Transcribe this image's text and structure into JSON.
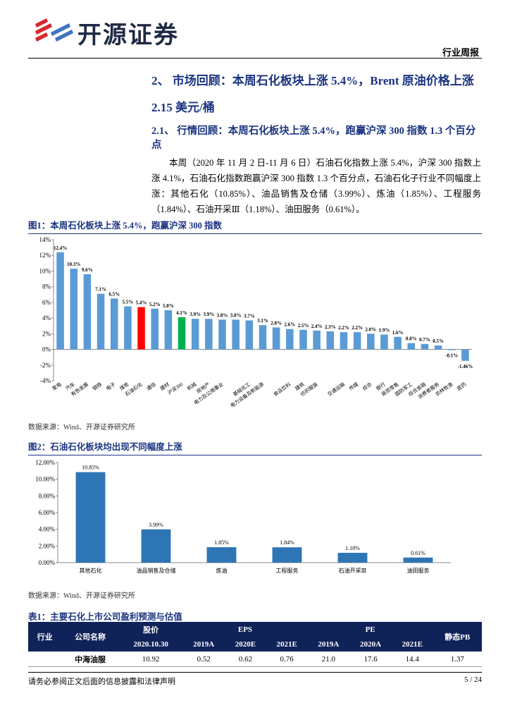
{
  "header": {
    "brand": "开源证券",
    "report_type": "行业周报"
  },
  "heading": "2、 市场回顾：本周石化板块上涨 5.4%，Brent 原油价格上涨 2.15 美元/桶",
  "subheading": "2.1、 行情回顾：本周石化板块上涨 5.4%，跑赢沪深 300 指数 1.3 个百分点",
  "paragraph": "本周（2020 年 11 月 2 日-11 月 6 日）石油石化指数上涨 5.4%，沪深 300 指数上涨 4.1%，石油石化指数跑赢沪深 300 指数 1.3 个百分点，石油石化子行业不同幅度上涨：其他石化（10.85%）、油品销售及仓储（3.99%）、炼油（1.85%）、工程服务（1.84%）、石油开采Ⅲ（1.18%）、油田服务（0.61%）。",
  "chart_data": [
    {
      "type": "bar",
      "title": "图1：本周石化板块上涨 5.4%，跑赢沪深 300 指数",
      "source": "数据来源：Wind、开源证券研究所",
      "categories": [
        "家电",
        "汽车",
        "有色金属",
        "钢铁",
        "电子",
        "煤炭",
        "石油石化",
        "通信",
        "建材",
        "沪深300",
        "机械",
        "房地产",
        "电力及公用事业",
        null,
        "基础化工",
        "电力设备及新能源",
        null,
        "食品饮料",
        "建筑",
        "纺织服装",
        null,
        "交通运输",
        "传媒",
        "综合",
        "银行",
        "商贸零售",
        "国防军工",
        "综合金融",
        "消费者服务",
        "农林牧渔",
        "医药"
      ],
      "values": [
        12.4,
        10.3,
        9.6,
        7.1,
        6.5,
        5.5,
        5.4,
        5.2,
        5.0,
        4.1,
        3.9,
        3.9,
        3.8,
        3.8,
        3.7,
        3.1,
        2.8,
        2.6,
        2.5,
        2.4,
        2.3,
        2.2,
        2.2,
        2.0,
        1.9,
        1.6,
        0.8,
        0.7,
        0.5,
        -0.1,
        -1.46
      ],
      "value_labels": [
        "12.4%",
        "10.3%",
        "9.6%",
        "7.1%",
        "6.5%",
        "5.5%",
        "5.4%",
        "5.2%",
        "5.0%",
        "4.1%",
        "3.9%",
        "3.9%",
        "3.8%",
        "3.8%",
        "3.7%",
        "3.1%",
        "2.8%",
        "2.6%",
        "2.5%",
        "2.4%",
        "2.3%",
        "2.2%",
        "2.2%",
        "2.0%",
        "1.9%",
        "1.6%",
        "0.8%",
        "0.7%",
        "0.5%",
        "-0.1%",
        "-1.46%"
      ],
      "colors": [
        "#5b9bd5",
        "#5b9bd5",
        "#5b9bd5",
        "#5b9bd5",
        "#5b9bd5",
        "#5b9bd5",
        "#ff0000",
        "#5b9bd5",
        "#5b9bd5",
        "#00b050",
        "#5b9bd5",
        "#5b9bd5",
        "#5b9bd5",
        "#5b9bd5",
        "#5b9bd5",
        "#5b9bd5",
        "#5b9bd5",
        "#5b9bd5",
        "#5b9bd5",
        "#5b9bd5",
        "#5b9bd5",
        "#5b9bd5",
        "#5b9bd5",
        "#5b9bd5",
        "#5b9bd5",
        "#5b9bd5",
        "#5b9bd5",
        "#5b9bd5",
        "#5b9bd5",
        "#5b9bd5",
        "#5b9bd5"
      ],
      "ylim": [
        -4,
        14
      ],
      "yticks": [
        {
          "value": -4,
          "label": "-4%"
        },
        {
          "value": -2,
          "label": "-2%"
        },
        {
          "value": 0,
          "label": "0%"
        },
        {
          "value": 2,
          "label": "2%"
        },
        {
          "value": 4,
          "label": "4%"
        },
        {
          "value": 6,
          "label": "6%"
        },
        {
          "value": 8,
          "label": "8%"
        },
        {
          "value": 10,
          "label": "10%"
        },
        {
          "value": 12,
          "label": "12%"
        },
        {
          "value": 14,
          "label": "14%"
        }
      ],
      "grid": false
    },
    {
      "type": "bar",
      "title": "图2：石油石化板块均出现不同幅度上涨",
      "source": "数据来源：Wind、开源证券研究所",
      "categories": [
        "其他石化",
        "油品销售及仓储",
        "炼油",
        "工程服务",
        "石油开采Ⅲ",
        "油田服务"
      ],
      "values": [
        10.85,
        3.99,
        1.85,
        1.84,
        1.18,
        0.61
      ],
      "value_labels": [
        "10.85%",
        "3.99%",
        "1.85%",
        "1.84%",
        "1.18%",
        "0.61%"
      ],
      "colors": [
        "#2e75b6",
        "#2e75b6",
        "#2e75b6",
        "#2e75b6",
        "#2e75b6",
        "#2e75b6"
      ],
      "ylim": [
        0,
        12
      ],
      "yticks": [
        {
          "value": 0,
          "label": "0.00%"
        },
        {
          "value": 2,
          "label": "2.00%"
        },
        {
          "value": 4,
          "label": "4.00%"
        },
        {
          "value": 6,
          "label": "6.00%"
        },
        {
          "value": 8,
          "label": "8.00%"
        },
        {
          "value": 10,
          "label": "10.00%"
        },
        {
          "value": 12,
          "label": "12.00%"
        }
      ],
      "grid": false
    }
  ],
  "table": {
    "title": "表1：主要石化上市公司盈利预测与估值",
    "head1": [
      "行业",
      "公司名称",
      "股价",
      "EPS",
      "PE",
      "静态PB"
    ],
    "head2": [
      "2020.10.30",
      "2019A",
      "2020E",
      "2021E",
      "2019A",
      "2020A",
      "2021E"
    ],
    "rows": [
      [
        null,
        "中海油服",
        "10.92",
        "0.52",
        "0.62",
        "0.76",
        "21.0",
        "17.6",
        "14.4",
        "1.37"
      ]
    ]
  },
  "footer": {
    "disclaimer": "请务必参阅正文后面的信息披露和法律声明",
    "page": "5 / 24"
  }
}
